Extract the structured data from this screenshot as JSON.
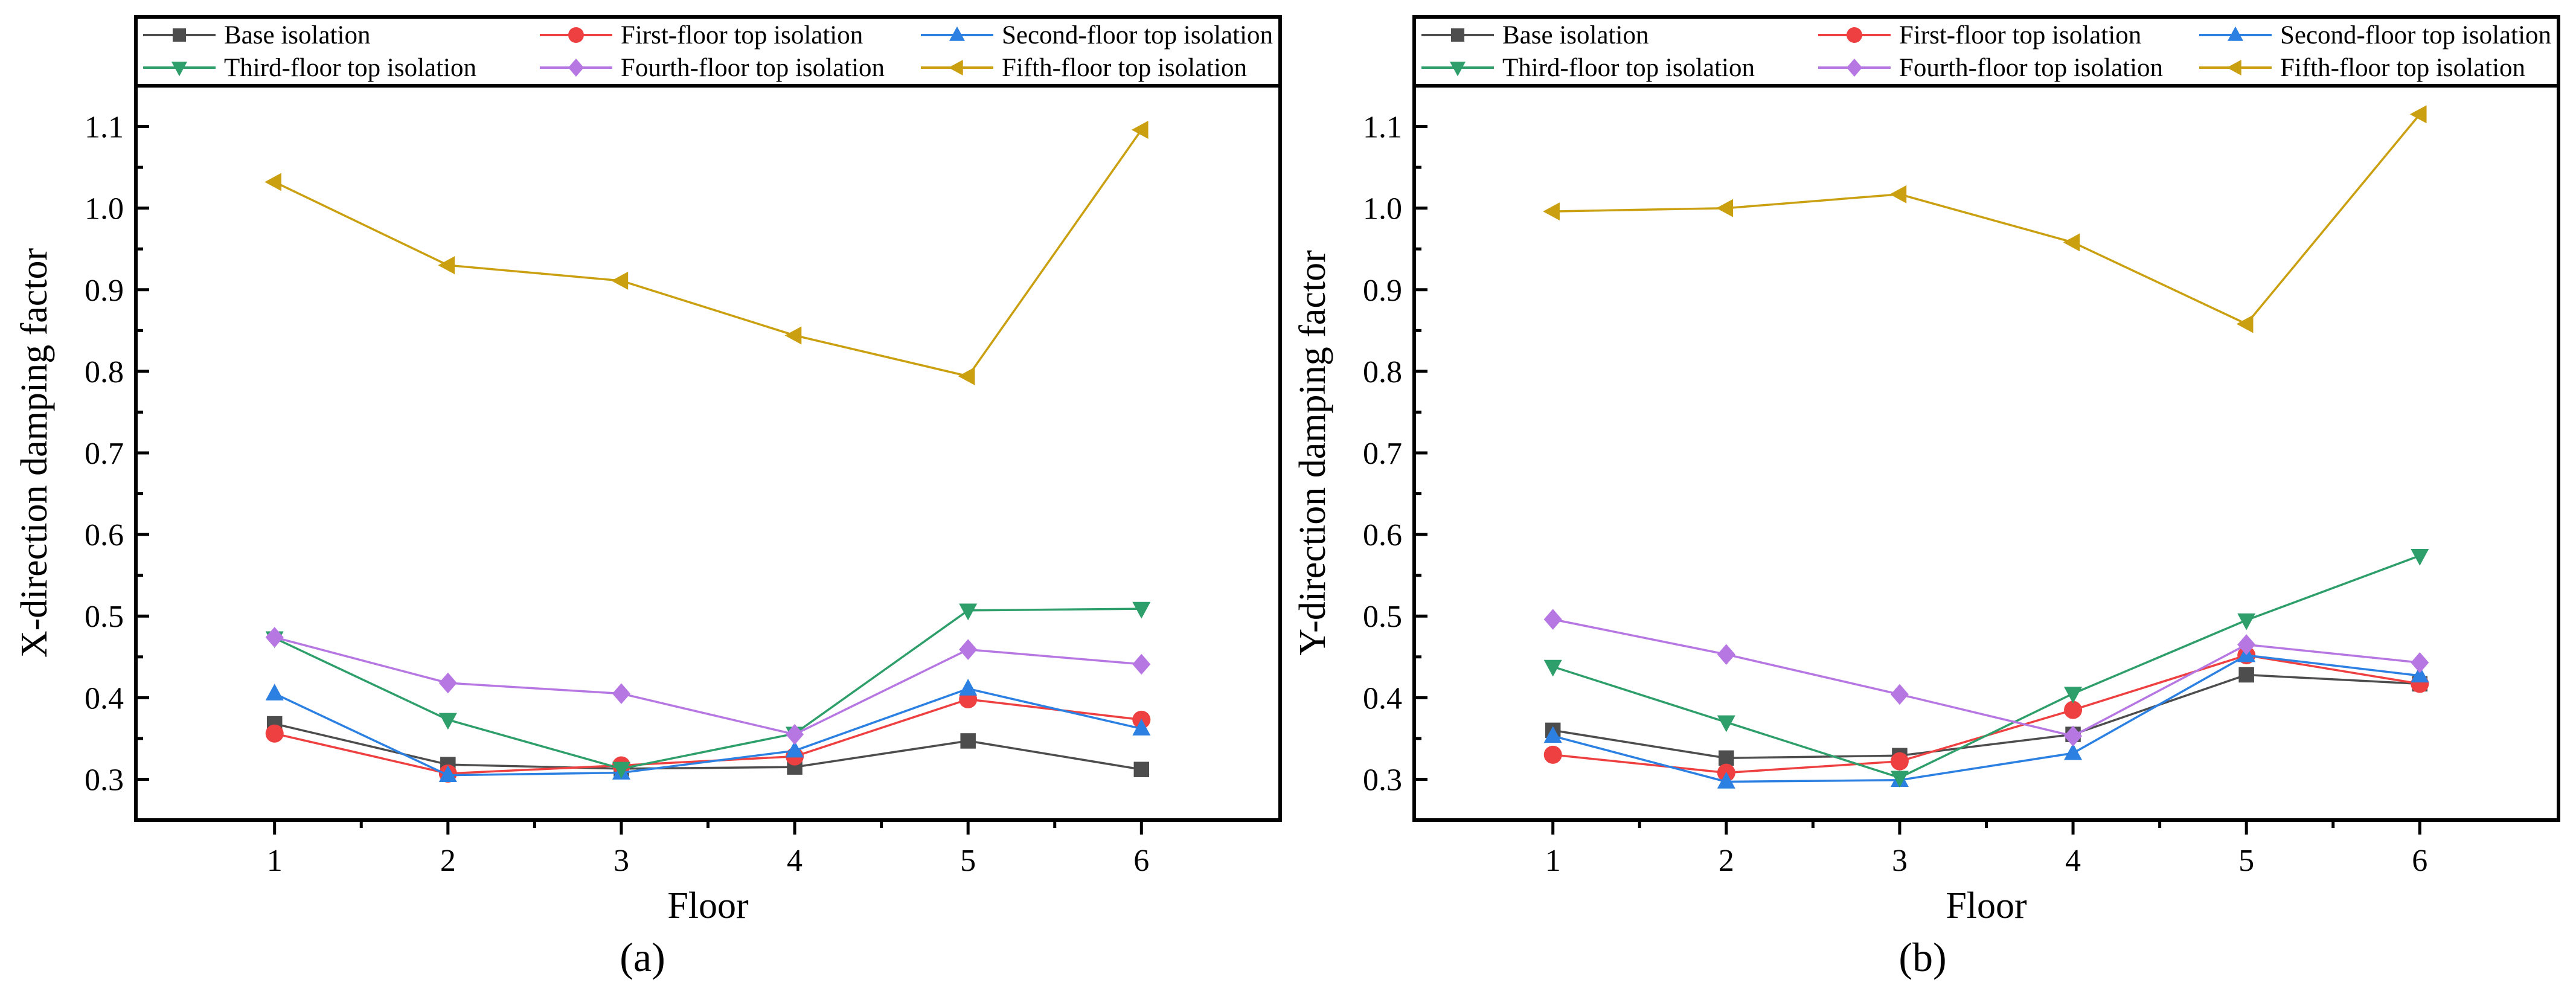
{
  "figure": {
    "captions": [
      "(a)",
      "(b)"
    ]
  },
  "chart_data": [
    {
      "type": "line",
      "panel": "(a)",
      "x": [
        1,
        2,
        3,
        4,
        5,
        6
      ],
      "xlabel": "Floor",
      "ylabel": "X-direction damping factor",
      "xlim": [
        0.2,
        6.8
      ],
      "ylim": [
        0.25,
        1.15
      ],
      "xticks": [
        1,
        2,
        3,
        4,
        5,
        6
      ],
      "yticks": [
        0.3,
        0.4,
        0.5,
        0.6,
        0.7,
        0.8,
        0.9,
        1.0,
        1.1
      ],
      "ytick_labels": [
        "0.3",
        "0.4",
        "0.5",
        "0.6",
        "0.7",
        "0.8",
        "0.9",
        "1.0",
        "1.1"
      ],
      "grid": false,
      "legend_position": "top",
      "series": [
        {
          "name": "Base isolation",
          "color": "#4d4d4d",
          "marker": "square",
          "values": [
            0.368,
            0.318,
            0.313,
            0.315,
            0.347,
            0.312
          ]
        },
        {
          "name": "First-floor top isolation",
          "color": "#ee4040",
          "marker": "circle",
          "values": [
            0.356,
            0.307,
            0.317,
            0.328,
            0.398,
            0.373
          ]
        },
        {
          "name": "Second-floor top isolation",
          "color": "#2b80e2",
          "marker": "triangle-up",
          "values": [
            0.405,
            0.305,
            0.308,
            0.335,
            0.411,
            0.362
          ]
        },
        {
          "name": "Third-floor top isolation",
          "color": "#2e9e6a",
          "marker": "triangle-down",
          "values": [
            0.473,
            0.373,
            0.313,
            0.356,
            0.507,
            0.509
          ]
        },
        {
          "name": "Fourth-floor top isolation",
          "color": "#b777e3",
          "marker": "diamond",
          "values": [
            0.474,
            0.418,
            0.405,
            0.355,
            0.459,
            0.441
          ]
        },
        {
          "name": "Fifth-floor top isolation",
          "color": "#caa010",
          "marker": "triangle-left",
          "values": [
            1.032,
            0.93,
            0.911,
            0.844,
            0.794,
            1.096
          ]
        }
      ]
    },
    {
      "type": "line",
      "panel": "(b)",
      "x": [
        1,
        2,
        3,
        4,
        5,
        6
      ],
      "xlabel": "Floor",
      "ylabel": "Y-direction damping factor",
      "xlim": [
        0.2,
        6.8
      ],
      "ylim": [
        0.25,
        1.15
      ],
      "xticks": [
        1,
        2,
        3,
        4,
        5,
        6
      ],
      "yticks": [
        0.3,
        0.4,
        0.5,
        0.6,
        0.7,
        0.8,
        0.9,
        1.0,
        1.1
      ],
      "ytick_labels": [
        "0.3",
        "0.4",
        "0.5",
        "0.6",
        "0.7",
        "0.8",
        "0.9",
        "1.0",
        "1.1"
      ],
      "grid": false,
      "legend_position": "top",
      "series": [
        {
          "name": "Base isolation",
          "color": "#4d4d4d",
          "marker": "square",
          "values": [
            0.36,
            0.326,
            0.329,
            0.355,
            0.428,
            0.417
          ]
        },
        {
          "name": "First-floor top isolation",
          "color": "#ee4040",
          "marker": "circle",
          "values": [
            0.33,
            0.308,
            0.322,
            0.385,
            0.452,
            0.417
          ]
        },
        {
          "name": "Second-floor top isolation",
          "color": "#2b80e2",
          "marker": "triangle-up",
          "values": [
            0.353,
            0.297,
            0.299,
            0.332,
            0.452,
            0.427
          ]
        },
        {
          "name": "Third-floor top isolation",
          "color": "#2e9e6a",
          "marker": "triangle-down",
          "values": [
            0.438,
            0.37,
            0.302,
            0.405,
            0.495,
            0.574
          ]
        },
        {
          "name": "Fourth-floor top isolation",
          "color": "#b777e3",
          "marker": "diamond",
          "values": [
            0.496,
            0.453,
            0.404,
            0.353,
            0.465,
            0.443
          ]
        },
        {
          "name": "Fifth-floor top isolation",
          "color": "#caa010",
          "marker": "triangle-left",
          "values": [
            0.996,
            1.0,
            1.017,
            0.958,
            0.858,
            1.115
          ]
        }
      ]
    }
  ]
}
